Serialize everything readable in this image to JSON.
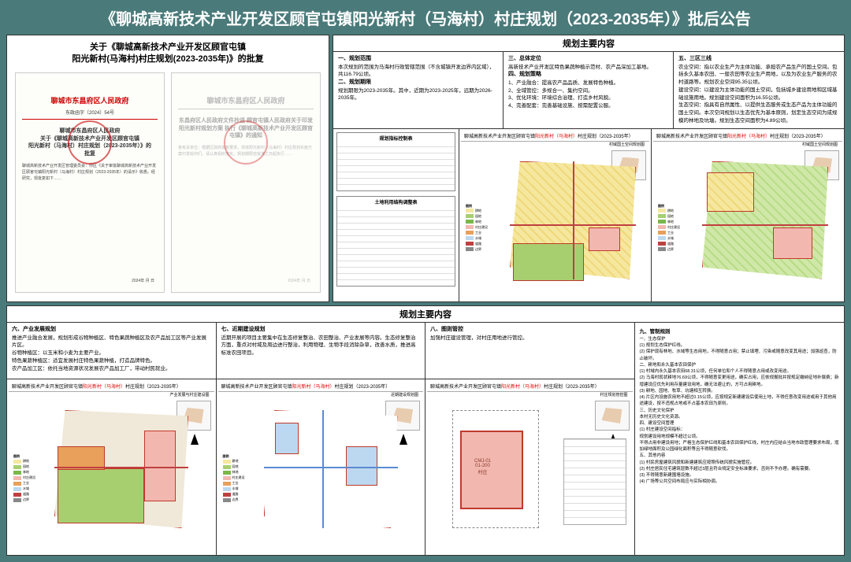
{
  "title": "《聊城高新技术产业开发区顾官屯镇阳光新村（马海村）村庄规划（2023-2035年）》批后公告",
  "approval": {
    "header": "关于《聊城高新技术产业开发区顾官屯镇\n阳光新村(马海村)村庄规划(2023-2035年)》的批复",
    "doc1_issuer": "聊城市东昌府区人民政府",
    "doc1_ref": "东政函字〔2024〕54号",
    "doc1_title": "聊城市东昌府区人民政府\n关于《聊城高新技术产业开发区顾官屯镇\n阳光新村（马海村）村庄规划（2023-2035年）》的\n批复",
    "doc1_body": "聊城高新技术产业开发区管理委员会：你区《关于审批聊城高新技术产业开发区顾官屯镇阳光新村（马海村）村庄规划（2023-2035年）的请示》收悉。经研究，现批复如下……",
    "doc2_title": "东昌府区人民政府文件抄送\n顾官屯镇人民政府关于印发阳光新村规划方案\n执行《聊城高新技术产业开发区顾官屯镇》的通知",
    "doc2_body": "各有关单位：根据区政府批复要求，现将阳光新村（马海村）村庄规划实施方案印发给你们，请认真组织落实。规划期限自批准之日起执行……",
    "doc_date": "2024年 月 日"
  },
  "section_header": "规划主要内容",
  "top_cols": {
    "c1_t1": "一、规划范围",
    "c1_b1": "本次规划的范围为马海村行政管辖范围（不含城镇开发边界内区域），共116.79公顷。",
    "c1_t2": "二、规划期限",
    "c1_b2": "规划期限为2023-2035年。其中，近期为2023-2025年，远期为2026-2035年。",
    "c2_t": "三、总体定位",
    "c2_b1": "高新技术产业开发区特色果蔬种植示范村、农产品深加工基地。",
    "c2_t2": "四、规划策略",
    "c2_l1": "1、产业融合：提高农产品品质、发展特色种植。",
    "c2_l2": "2、全域管控：多规合一、集约空间。",
    "c2_l3": "3、优化环境：环境综合治理、打造乡村风貌。",
    "c2_l4": "4、完善配套：完善基础设施、按需配置公服。",
    "c3_t": "五、三区三线",
    "c3_b1": "农业空间：指以农业生产为主体功能、承担农产品生产的国土空间。包括永久基本农田、一般农田等农业生产用地，以及为农业生产服务的农村道路等。规划农业空间95.35公顷。",
    "c3_b2": "建设空间：以建设为主体功能的国土空间，包括城乡建设用地和区域基础设施用地。规划建设空间面积为16.55公顷。",
    "c3_b3": "生态空间：指具有自然属性、以提供生态服务或生态产品为主体功能的国土空间。本次空间规划以生态优先为基本原则，划定生态空间为成规模的林地及坑塘。规划生态空间面积为4.89公顷。"
  },
  "map_common": {
    "prefix": "聊城高新技术产业开发区顾官屯镇",
    "hl": "阳光新村（马海村）",
    "suffix": "村庄规划（2023-2035年）",
    "sub1": "村域国土空间规划图",
    "legend_title": "图例"
  },
  "mini_tables": {
    "t1": "规划指标控制表",
    "t2": "土地利用结构调整表"
  },
  "legend_items": [
    {
      "c": "#f5e79e",
      "t": "耕地"
    },
    {
      "c": "#a8cf6f",
      "t": "园地"
    },
    {
      "c": "#7ab84a",
      "t": "林地"
    },
    {
      "c": "#f2b8b0",
      "t": "村庄建设"
    },
    {
      "c": "#e8a05a",
      "t": "工业"
    },
    {
      "c": "#bcd8f0",
      "t": "水域"
    },
    {
      "c": "#c04040",
      "t": "道路"
    },
    {
      "c": "#888",
      "t": "边界"
    }
  ],
  "bottom": {
    "c6_t": "六、产业发展规划",
    "c6_b": "推进产业融合发展，规划形成谷物种植区、特色果蔬种植区及农产品加工区等产业发展片区。\n谷物种植区：以玉米和小麦为主要产业。\n特色果蔬种植区：适宜发展村庄特色果蔬种植，打造品牌特色。\n农产品加工区：依托当地资源状况发展农产品加工厂，带动村民就业。",
    "c7_t": "七、近期建设规划",
    "c7_b": "近期开展的项目主要集中在生态修复整治、农田整治、产业发展等内容。生态修复整治方面，重点对村域及周边进行整治，利用物理、生物手段消除杂草，改善水质，推进高标准农田项目。",
    "c8_t": "八、图则管控",
    "c8_b": "加强村庄建设管理，对村庄用地进行管控。",
    "c9_t": "九、管制规则",
    "c9_b": "一、生态保护\n(1) 规划生态保护红线。\n(2) 保护现有林地、水域等生态用地，不得随意占用；禁止填埋、污染或随意改变其用途；加强巡查，防止破坏。\n二、耕地和永久基本农田保护\n(1) 村域内永久基本农田68.31公顷，任何单位和个人不得随意占用或改变用途。\n(2) 马海村现状耕地76.69公顷，不得随意变更用途，确实占用，应依规报批并按规定缴纳征地补偿费；新增建设应优先利用存量建设用地，确无法避让的，方可占用耕地。\n(3) 耕地、园地、牧草、坑塘相互转换。\n(4) 片区内设施农用地不超过0.15公顷，应按规定新建建设后使用土地，不得任意改变用途或用于其他用途建设，按不违规占地或不占基本农田为原则。\n三、历史文化保护\n本村无历史文化资源。\n四、建设空间管理\n(1) 村庄建设空间指标：\n规划建设用地规模不超过公顷。\n不得占用非建设用地；严格生态保护红线和基本农田保护红线，村庄内应结合当地市政管理要求布局，增加绿地面积及公园绿化面积等且不得随意砍伐。\n五、其他内容\n(1) 村民房屋建筑风貌和新建建筑应按照传统风貌实施管控。\n(2) 村庄居民住宅建筑层数不超过3层且符合规定安全标准要求，否则不予办理。确有需要。\n(3) 不得随意新建围墙设施。\n(4) 广场等公共空间布局应与实际相协调。"
  },
  "map_subs": {
    "s6": "产业发展与村庄建设图",
    "s7": "近期建设规划图",
    "s8": "村庄规划管控图"
  },
  "tuze_label": "CMJ-01\n01-200\n村庄"
}
